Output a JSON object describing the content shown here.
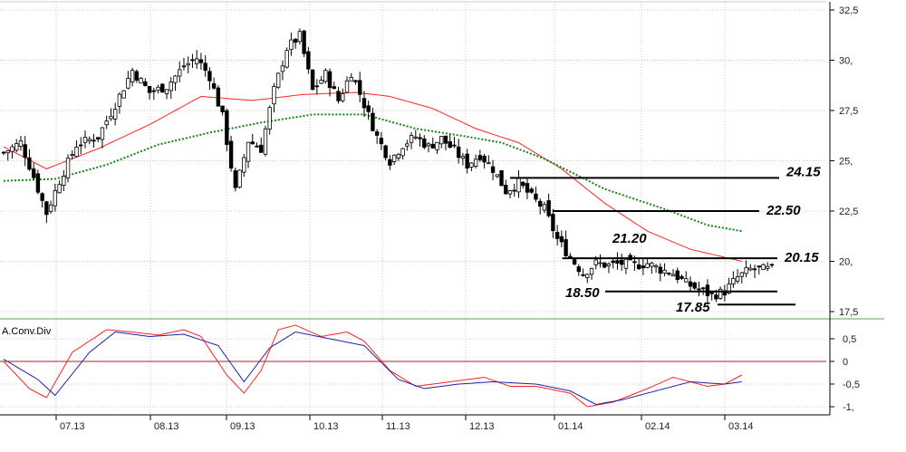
{
  "chart_data": [
    {
      "type": "candlestick",
      "title": "",
      "ylim": [
        17.0,
        32.7
      ],
      "y_ticks": [
        {
          "value": 32.5,
          "label": "32,5"
        },
        {
          "value": 30.0,
          "label": "30,"
        },
        {
          "value": 27.5,
          "label": "27,5"
        },
        {
          "value": 25.0,
          "label": "25,"
        },
        {
          "value": 22.5,
          "label": "22,5"
        },
        {
          "value": 20.0,
          "label": "20,"
        },
        {
          "value": 17.5,
          "label": "17,5"
        }
      ],
      "x_labels": [
        "07.13",
        "08.13",
        "09.13",
        "10.13",
        "11.13",
        "12.13",
        "01.14",
        "02.14",
        "03.14"
      ],
      "candles_count": 180,
      "close_anchors": [
        [
          0,
          25.4
        ],
        [
          4,
          25.9
        ],
        [
          7,
          24.2
        ],
        [
          10,
          22.4
        ],
        [
          13,
          24.0
        ],
        [
          17,
          25.8
        ],
        [
          22,
          26.2
        ],
        [
          26,
          27.8
        ],
        [
          30,
          29.5
        ],
        [
          34,
          28.4
        ],
        [
          38,
          28.7
        ],
        [
          42,
          29.7
        ],
        [
          45,
          30.1
        ],
        [
          48,
          29.2
        ],
        [
          51,
          27.2
        ],
        [
          54,
          23.5
        ],
        [
          57,
          26.0
        ],
        [
          60,
          25.6
        ],
        [
          63,
          28.5
        ],
        [
          66,
          30.6
        ],
        [
          69,
          31.2
        ],
        [
          72,
          28.5
        ],
        [
          75,
          29.3
        ],
        [
          78,
          28.0
        ],
        [
          81,
          29.4
        ],
        [
          84,
          27.8
        ],
        [
          87,
          26.2
        ],
        [
          90,
          25.0
        ],
        [
          93,
          25.8
        ],
        [
          96,
          26.2
        ],
        [
          99,
          25.7
        ],
        [
          102,
          26.1
        ],
        [
          105,
          25.5
        ],
        [
          108,
          24.8
        ],
        [
          111,
          25.3
        ],
        [
          114,
          24.6
        ],
        [
          117,
          23.5
        ],
        [
          120,
          23.9
        ],
        [
          123,
          23.2
        ],
        [
          126,
          22.6
        ],
        [
          129,
          21.1
        ],
        [
          132,
          20.2
        ],
        [
          135,
          19.4
        ],
        [
          138,
          19.9
        ],
        [
          141,
          19.8
        ],
        [
          144,
          19.9
        ],
        [
          147,
          19.8
        ],
        [
          150,
          19.9
        ],
        [
          153,
          19.6
        ],
        [
          156,
          19.4
        ],
        [
          159,
          18.9
        ],
        [
          162,
          18.6
        ],
        [
          165,
          18.3
        ],
        [
          168,
          18.5
        ],
        [
          171,
          19.2
        ],
        [
          174,
          19.6
        ]
      ],
      "series": [
        {
          "name": "",
          "color": "#ff2222",
          "style": "solid",
          "values_anchors": [
            [
              0,
              25.7
            ],
            [
              10,
              24.6
            ],
            [
              22,
              25.6
            ],
            [
              34,
              26.8
            ],
            [
              46,
              28.2
            ],
            [
              58,
              28.0
            ],
            [
              70,
              28.3
            ],
            [
              82,
              28.4
            ],
            [
              90,
              28.2
            ],
            [
              100,
              27.6
            ],
            [
              110,
              26.6
            ],
            [
              120,
              25.9
            ],
            [
              130,
              24.6
            ],
            [
              140,
              22.9
            ],
            [
              150,
              21.5
            ],
            [
              160,
              20.6
            ],
            [
              172,
              20.0
            ]
          ]
        },
        {
          "name": "",
          "color": "#118811",
          "style": "dotted",
          "values_anchors": [
            [
              0,
              24.0
            ],
            [
              12,
              24.1
            ],
            [
              24,
              24.8
            ],
            [
              36,
              25.8
            ],
            [
              48,
              26.4
            ],
            [
              60,
              26.9
            ],
            [
              72,
              27.3
            ],
            [
              84,
              27.3
            ],
            [
              96,
              26.6
            ],
            [
              108,
              26.2
            ],
            [
              116,
              25.9
            ],
            [
              126,
              25.1
            ],
            [
              140,
              23.6
            ],
            [
              154,
              22.6
            ],
            [
              164,
              21.8
            ],
            [
              172,
              21.5
            ]
          ]
        }
      ],
      "levels": [
        {
          "value": 24.15,
          "label": "24.15",
          "start": 118
        },
        {
          "value": 22.5,
          "label": "22.50",
          "start": 128
        },
        {
          "value": 21.2,
          "label": "21.20"
        },
        {
          "value": 20.15,
          "label": "20.15",
          "start": 131
        },
        {
          "value": 18.5,
          "label": "18.50",
          "start": 131
        },
        {
          "value": 17.85,
          "label": "17.85",
          "start": 157
        }
      ]
    },
    {
      "type": "line",
      "title": "A.Conv.Div",
      "ylim": [
        -1.2,
        0.95
      ],
      "y_ticks": [
        {
          "value": 0.5,
          "label": "0,5"
        },
        {
          "value": 0,
          "label": "0"
        },
        {
          "value": -0.5,
          "label": "-0,5"
        },
        {
          "value": -1,
          "label": "-1,"
        }
      ],
      "zero_line_color": "#aa2222",
      "series": [
        {
          "name": "",
          "color": "#ff2222",
          "values_anchors": [
            [
              0,
              0.0
            ],
            [
              6,
              -0.6
            ],
            [
              10,
              -0.8
            ],
            [
              16,
              0.2
            ],
            [
              24,
              0.7
            ],
            [
              30,
              0.65
            ],
            [
              36,
              0.58
            ],
            [
              42,
              0.7
            ],
            [
              46,
              0.55
            ],
            [
              52,
              -0.3
            ],
            [
              56,
              -0.7
            ],
            [
              60,
              -0.2
            ],
            [
              64,
              0.7
            ],
            [
              68,
              0.8
            ],
            [
              74,
              0.55
            ],
            [
              80,
              0.65
            ],
            [
              84,
              0.45
            ],
            [
              90,
              -0.2
            ],
            [
              96,
              -0.55
            ],
            [
              104,
              -0.45
            ],
            [
              112,
              -0.35
            ],
            [
              118,
              -0.55
            ],
            [
              124,
              -0.55
            ],
            [
              132,
              -0.7
            ],
            [
              136,
              -1.0
            ],
            [
              142,
              -0.9
            ],
            [
              150,
              -0.6
            ],
            [
              156,
              -0.35
            ],
            [
              164,
              -0.55
            ],
            [
              168,
              -0.5
            ],
            [
              172,
              -0.3
            ]
          ]
        },
        {
          "name": "",
          "color": "#2222aa",
          "values_anchors": [
            [
              0,
              0.05
            ],
            [
              8,
              -0.4
            ],
            [
              12,
              -0.75
            ],
            [
              20,
              0.2
            ],
            [
              26,
              0.65
            ],
            [
              34,
              0.55
            ],
            [
              42,
              0.6
            ],
            [
              50,
              0.35
            ],
            [
              56,
              -0.45
            ],
            [
              62,
              0.3
            ],
            [
              68,
              0.65
            ],
            [
              76,
              0.5
            ],
            [
              84,
              0.35
            ],
            [
              92,
              -0.4
            ],
            [
              98,
              -0.6
            ],
            [
              106,
              -0.5
            ],
            [
              114,
              -0.45
            ],
            [
              124,
              -0.5
            ],
            [
              132,
              -0.65
            ],
            [
              138,
              -0.95
            ],
            [
              144,
              -0.85
            ],
            [
              152,
              -0.65
            ],
            [
              160,
              -0.45
            ],
            [
              168,
              -0.5
            ],
            [
              172,
              -0.45
            ]
          ]
        }
      ]
    }
  ]
}
